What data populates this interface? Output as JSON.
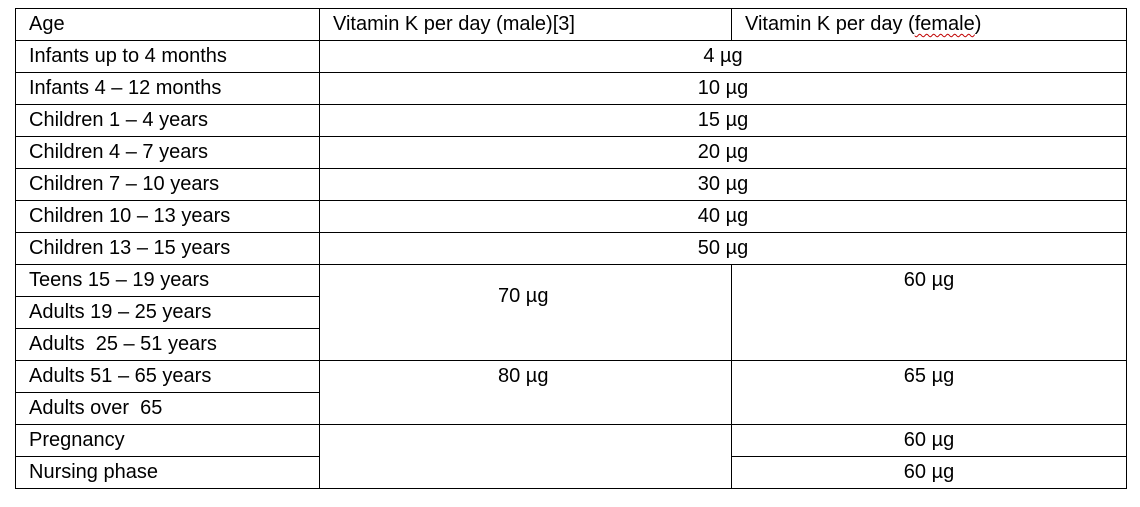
{
  "table": {
    "headers": {
      "age": "Age",
      "male": "Vitamin K per day (male)[3]",
      "female_prefix": "Vitamin K per day (",
      "female_word": "female",
      "female_suffix": ")"
    },
    "rows": [
      {
        "age": "Infants up to 4 months",
        "both": "4 µg"
      },
      {
        "age": "Infants 4 – 12 months",
        "both": "10 µg"
      },
      {
        "age": "Children 1 – 4 years",
        "both": "15 µg"
      },
      {
        "age": "Children 4 – 7 years",
        "both": "20 µg"
      },
      {
        "age": "Children 7 – 10 years",
        "both": "30 µg"
      },
      {
        "age": "Children 10 – 13 years",
        "both": "40 µg"
      },
      {
        "age": "Children 13 – 15 years",
        "both": "50 µg"
      },
      {
        "age": "Teens 15 – 19 years"
      },
      {
        "age": "Adults 19 – 25 years"
      },
      {
        "age": "Adults  25 – 51 years"
      },
      {
        "age": "Adults 51 – 65 years"
      },
      {
        "age": "Adults over  65"
      },
      {
        "age": "Pregnancy",
        "female": "60 µg"
      },
      {
        "age": "Nursing phase",
        "female": "60 µg"
      }
    ],
    "groups": {
      "teens_adults_male": "70 µg",
      "teens_adults_female": "60 µg",
      "seniors_male": "80 µg",
      "seniors_female": "65 µg"
    }
  }
}
